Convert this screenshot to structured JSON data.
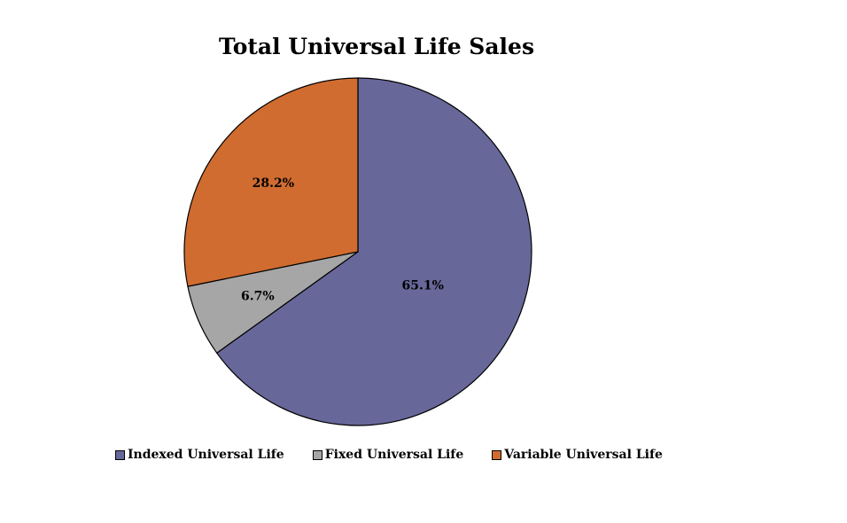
{
  "chart_data": {
    "type": "pie",
    "title": "Total Universal Life Sales",
    "categories": [
      "Indexed Universal Life",
      "Fixed Universal Life",
      "Variable Universal Life"
    ],
    "values": [
      65.1,
      6.7,
      28.2
    ],
    "labels": [
      "65.1%",
      "6.7%",
      "28.2%"
    ],
    "colors": [
      "#67679A",
      "#A6A6A6",
      "#D06C30"
    ],
    "legend_position": "bottom"
  }
}
